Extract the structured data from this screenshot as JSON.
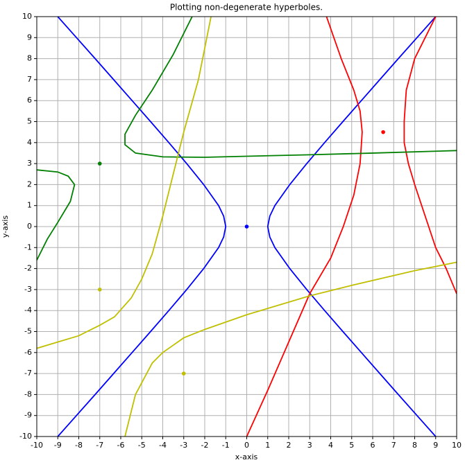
{
  "chart_data": {
    "type": "line",
    "title": "Plotting non-degenerate hyperboles.",
    "x_label": "x-axis",
    "y_label": "y-axis",
    "xlim": [
      -10,
      10
    ],
    "ylim": [
      -10,
      10
    ],
    "xticks": [
      -10,
      -9,
      -8,
      -7,
      -6,
      -5,
      -4,
      -3,
      -2,
      -1,
      0,
      1,
      2,
      3,
      4,
      5,
      6,
      7,
      8,
      9,
      10
    ],
    "yticks": [
      -10,
      -9,
      -8,
      -7,
      -6,
      -5,
      -4,
      -3,
      -2,
      -1,
      0,
      1,
      2,
      3,
      4,
      5,
      6,
      7,
      8,
      9,
      10
    ],
    "grid": true,
    "series": [
      {
        "color": "#0000ff",
        "x": [
          9.0,
          8.11,
          7.22,
          6.34,
          5.46,
          4.58,
          3.71,
          2.86,
          2.05,
          1.34,
          1.1,
          1.0,
          1.1,
          1.34,
          2.05,
          2.86,
          3.71,
          4.58,
          5.46,
          6.34,
          7.22,
          8.11,
          9.0
        ],
        "values": [
          -10,
          -9,
          -8,
          -7,
          -6,
          -5,
          -4,
          -3,
          -2,
          -1,
          -0.5,
          0,
          0.5,
          1,
          2,
          3,
          4,
          5,
          6,
          7,
          8,
          9,
          10
        ]
      },
      {
        "color": "#0000ff",
        "x": [
          -9.0,
          -8.11,
          -7.22,
          -6.34,
          -5.46,
          -4.58,
          -3.71,
          -2.86,
          -2.05,
          -1.34,
          -1.1,
          -1.0,
          -1.1,
          -1.34,
          -2.05,
          -2.86,
          -3.71,
          -4.58,
          -5.46,
          -6.34,
          -7.22,
          -8.11,
          -9.0
        ],
        "values": [
          -10,
          -9,
          -8,
          -7,
          -6,
          -5,
          -4,
          -3,
          -2,
          -1,
          -0.5,
          0,
          0.5,
          1,
          2,
          3,
          4,
          5,
          6,
          7,
          8,
          9,
          10
        ]
      },
      {
        "color": "#ff0000",
        "x": [
          3.8,
          4.5,
          5.1,
          5.4,
          5.5,
          5.4,
          5.1,
          4.6,
          4.0,
          3.0,
          2.0,
          1.0,
          0.0
        ],
        "values": [
          10,
          8,
          6.5,
          5.5,
          4.5,
          3,
          1.5,
          0,
          -1.5,
          -3.2,
          -5.5,
          -7.8,
          -10
        ]
      },
      {
        "color": "#ff0000",
        "x": [
          9.0,
          8.0,
          7.6,
          7.5,
          7.5,
          7.7,
          8.0,
          8.5,
          9.0,
          9.5,
          10.0
        ],
        "values": [
          10,
          8,
          6.5,
          5,
          4,
          3,
          2,
          0.5,
          -1,
          -2,
          -3.2
        ]
      },
      {
        "color": "#008000",
        "x": [
          -2.6,
          -3.5,
          -4.5,
          -5.3,
          -5.8,
          -5.8,
          -5.3,
          -4.0,
          -2.0,
          0.0,
          3.0,
          6.0,
          10.0
        ],
        "values": [
          10,
          8.2,
          6.5,
          5.3,
          4.4,
          3.9,
          3.5,
          3.32,
          3.3,
          3.35,
          3.42,
          3.5,
          3.62
        ]
      },
      {
        "color": "#008000",
        "x": [
          -10.0,
          -9.0,
          -8.5,
          -8.2,
          -8.4,
          -9.0,
          -9.5,
          -10.0
        ],
        "values": [
          2.7,
          2.6,
          2.4,
          2.0,
          1.2,
          0.2,
          -0.6,
          -1.6
        ]
      },
      {
        "color": "#bfbf00",
        "x": [
          -1.7,
          -2.3,
          -3.0,
          -3.5,
          -4.0,
          -4.5,
          -5.0,
          -5.5,
          -6.3,
          -7.0,
          -8.0,
          -9.0,
          -10.0
        ],
        "values": [
          10,
          7,
          4.5,
          2.5,
          0.5,
          -1.3,
          -2.5,
          -3.4,
          -4.3,
          -4.7,
          -5.2,
          -5.5,
          -5.8
        ]
      },
      {
        "color": "#bfbf00",
        "x": [
          -5.8,
          -5.3,
          -4.5,
          -4.0,
          -3.0,
          -2.0,
          0.0,
          3.0,
          5.0,
          8.0,
          10.0
        ],
        "values": [
          -10,
          -8,
          -6.5,
          -6,
          -5.3,
          -4.9,
          -4.2,
          -3.3,
          -2.8,
          -2.1,
          -1.7
        ]
      }
    ],
    "points": [
      {
        "color": "#0000ff",
        "x": 0,
        "y": 0
      },
      {
        "color": "#ff0000",
        "x": 6.5,
        "y": 4.5
      },
      {
        "color": "#008000",
        "x": -7,
        "y": 3
      },
      {
        "color": "#bfbf00",
        "x": -7,
        "y": -3
      },
      {
        "color": "#bfbf00",
        "x": -3,
        "y": -7
      }
    ]
  }
}
